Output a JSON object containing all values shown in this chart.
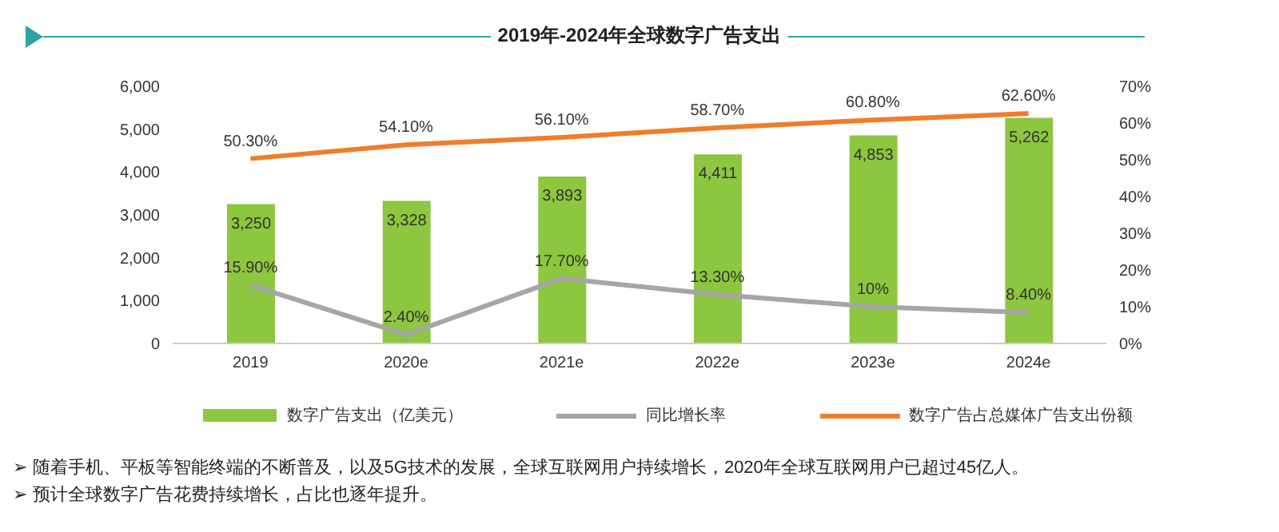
{
  "chart_data": {
    "type": "bar",
    "title": "2019年-2024年全球数字广告支出",
    "categories": [
      "2019",
      "2020e",
      "2021e",
      "2022e",
      "2023e",
      "2024e"
    ],
    "series": [
      {
        "name": "数字广告支出（亿美元）",
        "color": "#8dc63f",
        "values": [
          3250,
          3328,
          3893,
          4411,
          4853,
          5262
        ],
        "value_labels": [
          "3,250",
          "3,328",
          "3,893",
          "4,411",
          "4,853",
          "5,262"
        ]
      },
      {
        "name": "同比增长率",
        "type": "line",
        "axis": "y2",
        "color": "#a6a6a6",
        "values": [
          15.9,
          2.4,
          17.7,
          13.3,
          10,
          8.4
        ],
        "value_labels": [
          "15.90%",
          "2.40%",
          "17.70%",
          "13.30%",
          "10%",
          "8.40%"
        ]
      },
      {
        "name": "数字广告占总媒体广告支出份额",
        "type": "line",
        "axis": "y2",
        "color": "#f07d2b",
        "values": [
          50.3,
          54.1,
          56.1,
          58.7,
          60.8,
          62.6
        ],
        "value_labels": [
          "50.30%",
          "54.10%",
          "56.10%",
          "58.70%",
          "60.80%",
          "62.60%"
        ]
      }
    ],
    "ylim": [
      0,
      6000
    ],
    "yticks": [
      0,
      {
        "value": 1000,
        "label": "1,000"
      },
      {
        "value": 2000,
        "label": "2,000"
      },
      {
        "value": 3000,
        "label": "3,000"
      },
      {
        "value": 4000,
        "label": "4,000"
      },
      {
        "value": 5000,
        "label": "5,000"
      },
      {
        "value": 6000,
        "label": "6,000"
      }
    ],
    "y2lim": [
      0,
      70
    ],
    "y2ticks": [
      {
        "value": 0,
        "label": "0%"
      },
      {
        "value": 10,
        "label": "10%"
      },
      {
        "value": 20,
        "label": "20%"
      },
      {
        "value": 30,
        "label": "30%"
      },
      {
        "value": 40,
        "label": "40%"
      },
      {
        "value": 50,
        "label": "50%"
      },
      {
        "value": 60,
        "label": "60%"
      },
      {
        "value": 70,
        "label": "70%"
      }
    ],
    "legend": "bottom",
    "marker": "none",
    "annotations": [
      "➢ 随着手机、平板等智能终端的不断普及，以及5G技术的发展，全球互联网用户持续增长，2020年全球互联网用户已超过45亿人。",
      "➢ 预计全球数字广告花费持续增长，占比也逐年提升。"
    ]
  }
}
